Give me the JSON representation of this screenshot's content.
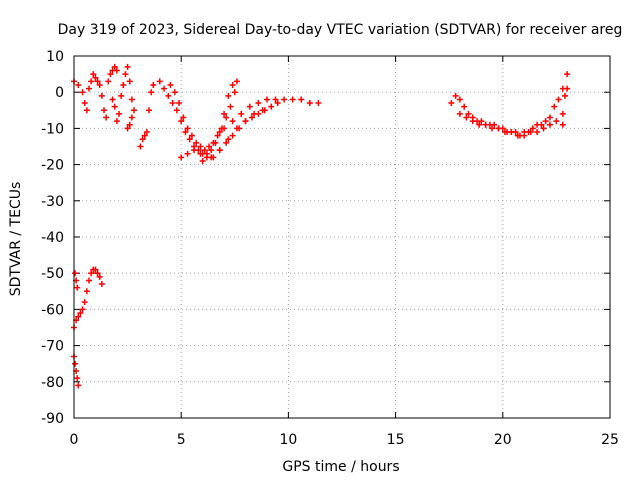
{
  "chart_data": {
    "type": "scatter",
    "title": "Day 319 of 2023, Sidereal Day-to-day VTEC variation (SDTVAR) for receiver areg",
    "xlabel": "GPS time / hours",
    "ylabel": "SDTVAR / TECUs",
    "xlim": [
      0,
      25
    ],
    "ylim": [
      -90,
      10
    ],
    "xticks": [
      0,
      5,
      10,
      15,
      20,
      25
    ],
    "yticks": [
      10,
      0,
      -10,
      -20,
      -30,
      -40,
      -50,
      -60,
      -70,
      -80,
      -90
    ],
    "grid": true,
    "marker": "+",
    "color": "#ff0000",
    "series": [
      {
        "name": "arc-early-low-1",
        "x": [
          0.0,
          0.05,
          0.1,
          0.15,
          0.2
        ],
        "y": [
          -73,
          -75,
          -77,
          -79,
          -81
        ]
      },
      {
        "name": "arc-early-low-2",
        "x": [
          0.0,
          0.1,
          0.2,
          0.3,
          0.4,
          0.5,
          0.6,
          0.7,
          0.8,
          0.9,
          1.0,
          1.1,
          1.2,
          1.3
        ],
        "y": [
          -65,
          -63,
          -62,
          -61,
          -60,
          -58,
          -55,
          -52,
          -50,
          -49,
          -49,
          -50,
          -51,
          -53
        ]
      },
      {
        "name": "arc-early-low-3",
        "x": [
          0.05,
          0.1,
          0.15
        ],
        "y": [
          -50,
          -52,
          -54
        ]
      },
      {
        "name": "arc-early-high",
        "x": [
          0.0,
          0.2,
          0.4,
          0.5,
          0.6,
          0.7,
          0.8,
          0.9,
          1.0,
          1.1,
          1.2,
          1.3,
          1.4,
          1.5,
          1.6,
          1.7,
          1.8,
          1.9,
          2.0
        ],
        "y": [
          3,
          2,
          0,
          -3,
          -5,
          1,
          3,
          5,
          4,
          3,
          2,
          -1,
          -5,
          -7,
          3,
          5,
          6,
          7,
          6
        ]
      },
      {
        "name": "arc-early-high-2",
        "x": [
          1.8,
          1.9,
          2.0,
          2.1,
          2.2,
          2.3,
          2.4,
          2.5,
          2.6,
          2.7
        ],
        "y": [
          -2,
          -4,
          -8,
          -6,
          -1,
          2,
          5,
          7,
          3,
          -2
        ]
      },
      {
        "name": "arc-early-high-3",
        "x": [
          2.5,
          2.6,
          2.7,
          2.8
        ],
        "y": [
          -10,
          -9,
          -7,
          -5
        ]
      },
      {
        "name": "arc-3h",
        "x": [
          3.1,
          3.2,
          3.3,
          3.4,
          3.5,
          3.6,
          3.7
        ],
        "y": [
          -15,
          -13,
          -12,
          -11,
          -5,
          0,
          2
        ]
      },
      {
        "name": "arc-main-a",
        "x": [
          4.0,
          4.2,
          4.4,
          4.6,
          4.8,
          5.0,
          5.2,
          5.4,
          5.6,
          5.8,
          6.0,
          6.2,
          6.4,
          6.6,
          6.8,
          7.0,
          7.2,
          7.4,
          7.6
        ],
        "y": [
          3,
          1,
          -1,
          -3,
          -5,
          -8,
          -11,
          -13,
          -15,
          -16,
          -17,
          -17,
          -16,
          -14,
          -11,
          -6,
          -1,
          2,
          3
        ]
      },
      {
        "name": "arc-main-b",
        "x": [
          4.5,
          4.7,
          4.9,
          5.1,
          5.3,
          5.5,
          5.7,
          5.9,
          6.1,
          6.3,
          6.5,
          6.7,
          6.9,
          7.1,
          7.3,
          7.5
        ],
        "y": [
          2,
          0,
          -3,
          -7,
          -10,
          -12,
          -14,
          -15,
          -16,
          -15,
          -14,
          -12,
          -10,
          -7,
          -4,
          0
        ]
      },
      {
        "name": "arc-main-c",
        "x": [
          5.0,
          5.3,
          5.6,
          5.9,
          6.2,
          6.5,
          6.8,
          7.1,
          7.4,
          7.7,
          8.0,
          8.3,
          8.6,
          8.9,
          9.2,
          9.5
        ],
        "y": [
          -18,
          -17,
          -16,
          -17,
          -18,
          -18,
          -16,
          -14,
          -12,
          -10,
          -8,
          -7,
          -6,
          -5,
          -4,
          -3
        ]
      },
      {
        "name": "arc-main-d",
        "x": [
          7.0,
          7.4,
          7.8,
          8.2,
          8.6,
          9.0,
          9.4,
          9.8,
          10.2,
          10.6,
          11.0,
          11.4
        ],
        "y": [
          -10,
          -8,
          -6,
          -4,
          -3,
          -2,
          -2,
          -2,
          -2,
          -2,
          -3,
          -3
        ]
      },
      {
        "name": "arc-main-e",
        "x": [
          6.0,
          6.4,
          6.8,
          7.2,
          7.6,
          8.0,
          8.4,
          8.8
        ],
        "y": [
          -19,
          -18,
          -16,
          -13,
          -10,
          -8,
          -6,
          -5
        ]
      },
      {
        "name": "arc-late-a",
        "x": [
          17.6,
          17.8,
          18.0,
          18.2,
          18.4,
          18.6,
          18.8,
          19.0,
          19.2,
          19.4,
          19.6,
          19.8,
          20.0,
          20.2,
          20.4,
          20.6,
          20.8,
          21.0,
          21.2,
          21.4,
          21.6,
          21.8,
          22.0,
          22.2,
          22.4,
          22.6,
          22.8,
          23.0
        ],
        "y": [
          -3,
          -1,
          -2,
          -4,
          -6,
          -7,
          -8,
          -8,
          -9,
          -9,
          -9,
          -10,
          -10,
          -11,
          -11,
          -11,
          -12,
          -11,
          -11,
          -10,
          -9,
          -9,
          -8,
          -7,
          -4,
          -2,
          1,
          5
        ]
      },
      {
        "name": "arc-late-b",
        "x": [
          18.0,
          18.3,
          18.6,
          18.9,
          19.2,
          19.5,
          19.8,
          20.1,
          20.4,
          20.7,
          21.0,
          21.3,
          21.6,
          21.9,
          22.2,
          22.5,
          22.8
        ],
        "y": [
          -6,
          -7,
          -8,
          -9,
          -9,
          -10,
          -10,
          -11,
          -11,
          -12,
          -12,
          -11,
          -11,
          -10,
          -9,
          -8,
          -6
        ]
      },
      {
        "name": "arc-late-c",
        "x": [
          22.8,
          22.9,
          23.0
        ],
        "y": [
          -9,
          -1,
          1
        ]
      }
    ]
  }
}
